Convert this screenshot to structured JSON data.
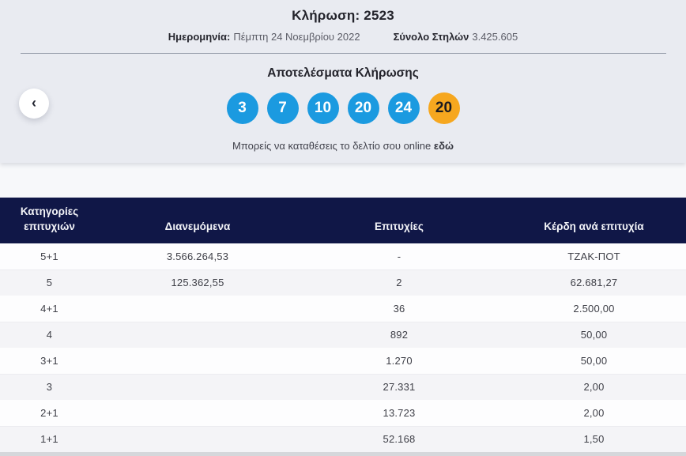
{
  "header": {
    "draw_label": "Κλήρωση: 2523",
    "date_label": "Ημερομηνία:",
    "date_value": "Πέμπτη 24 Νοεμβρίου 2022",
    "columns_label": "Σύνολο Στηλών",
    "columns_value": "3.425.605"
  },
  "results": {
    "title": "Αποτελέσματα Κλήρωσης",
    "numbers": [
      "3",
      "7",
      "10",
      "20",
      "24"
    ],
    "bonus_number": "20",
    "cta_text": "Μπορείς να καταθέσεις το δελτίο σου online",
    "cta_link_text": "εδώ",
    "prev_icon": "‹"
  },
  "colors": {
    "ball_blue": "#1b9ae0",
    "ball_bonus_orange": "#f6a71f",
    "table_header_navy": "#101747",
    "hero_background": "#e9ebf1"
  },
  "table": {
    "headers": {
      "category": "Κατηγορίες επιτυχιών",
      "distributed": "Διανεμόμενα",
      "winners": "Επιτυχίες",
      "prize": "Κέρδη ανά επιτυχία"
    },
    "rows": [
      {
        "category": "5+1",
        "distributed": "3.566.264,53",
        "winners": "-",
        "prize": "ΤΖΑΚ-ΠΟΤ"
      },
      {
        "category": "5",
        "distributed": "125.362,55",
        "winners": "2",
        "prize": "62.681,27"
      },
      {
        "category": "4+1",
        "distributed": "",
        "winners": "36",
        "prize": "2.500,00"
      },
      {
        "category": "4",
        "distributed": "",
        "winners": "892",
        "prize": "50,00"
      },
      {
        "category": "3+1",
        "distributed": "",
        "winners": "1.270",
        "prize": "50,00"
      },
      {
        "category": "3",
        "distributed": "",
        "winners": "27.331",
        "prize": "2,00"
      },
      {
        "category": "2+1",
        "distributed": "",
        "winners": "13.723",
        "prize": "2,00"
      },
      {
        "category": "1+1",
        "distributed": "",
        "winners": "52.168",
        "prize": "1,50"
      }
    ]
  }
}
